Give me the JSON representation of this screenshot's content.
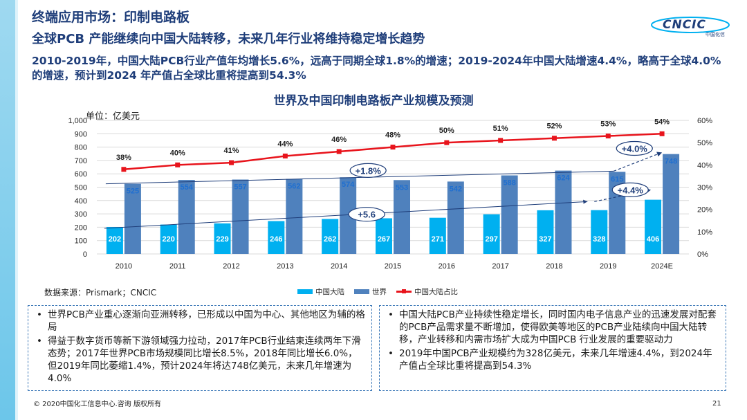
{
  "header": {
    "title": "终端应用市场：印制电路板",
    "subtitle": "全球PCB 产能继续向中国大陆转移，未来几年行业将维持稳定增长趋势",
    "summary": "2010-2019年，中国大陆PCB行业产值年均增长5.6%，远高于同期全球1.8%的增速；2019-2024年中国大陆增速4.4%，略高于全球4.0%的增速，预计到2024 年产值占全球比重将提高到54.3%"
  },
  "logo": {
    "text": "CNCIC",
    "sub": "中国化信"
  },
  "chart_data": {
    "type": "bar",
    "title": "世界及中国印制电路板产业规模及预测",
    "unit": "单位：亿美元",
    "categories": [
      "2010",
      "2011",
      "2012",
      "2013",
      "2014",
      "2015",
      "2016",
      "2017",
      "2018",
      "2019",
      "2024E"
    ],
    "series": [
      {
        "name": "中国大陆",
        "type": "bar",
        "color": "#00b0f0",
        "values": [
          202,
          220,
          229,
          246,
          262,
          267,
          271,
          297,
          327,
          328,
          406
        ]
      },
      {
        "name": "世界",
        "type": "bar",
        "color": "#4f81bd",
        "values": [
          525,
          554,
          557,
          562,
          574,
          553,
          542,
          588,
          624,
          615,
          748
        ]
      },
      {
        "name": "中国大陆占比",
        "type": "line",
        "color": "#e8141c",
        "axis": "right",
        "values": [
          38,
          40,
          41,
          44,
          46,
          48,
          50,
          51,
          52,
          53,
          54
        ]
      }
    ],
    "pct_labels": [
      "38%",
      "40%",
      "41%",
      "44%",
      "46%",
      "48%",
      "50%",
      "51%",
      "52%",
      "53%",
      "54%"
    ],
    "ylim_left": [
      0,
      1000
    ],
    "yticks_left": [
      "0",
      "100",
      "200",
      "300",
      "400",
      "500",
      "600",
      "700",
      "800",
      "900",
      "1,000"
    ],
    "ylim_right": [
      0,
      60
    ],
    "yticks_right": [
      "0%",
      "10%",
      "20%",
      "30%",
      "40%",
      "50%",
      "60%"
    ],
    "annotations": [
      "+1.8%",
      "+5.6",
      "+4.0%",
      "+4.4%"
    ],
    "grid": true,
    "legend_position": "bottom"
  },
  "source": "数据来源：Prismark；CNCIC",
  "notes": {
    "left": [
      "世界PCB产业重心逐渐向亚洲转移，已形成以中国为中心、其他地区为辅的格局",
      "得益于数字货币等新下游领域强力拉动，2017年PCB行业结束连续两年下滑态势；2017年世界PCB市场规模同比增长8.5%，2018年同比增长6.0%，但2019年同比萎缩1.4%，预计2024年将达748亿美元，未来几年增速为4.0%"
    ],
    "right": [
      "中国大陆PCB产业持续性稳定增长，同时国内电子信息产业的迅速发展对配套的PCB产品需求量不断增加，使得欧美等地区的PCB产业陆续向中国大陆转移，产业转移和内需市场扩大成为中国PCB 行业发展的重要驱动力",
      "2019年中国PCB产业规模约为328亿美元，未来几年增速4.4%，到2024年产值占全球比重将提高到54.3%"
    ]
  },
  "footer": {
    "copyright": "© 2020中国化工信息中心.咨询 版权所有",
    "page": "21"
  }
}
